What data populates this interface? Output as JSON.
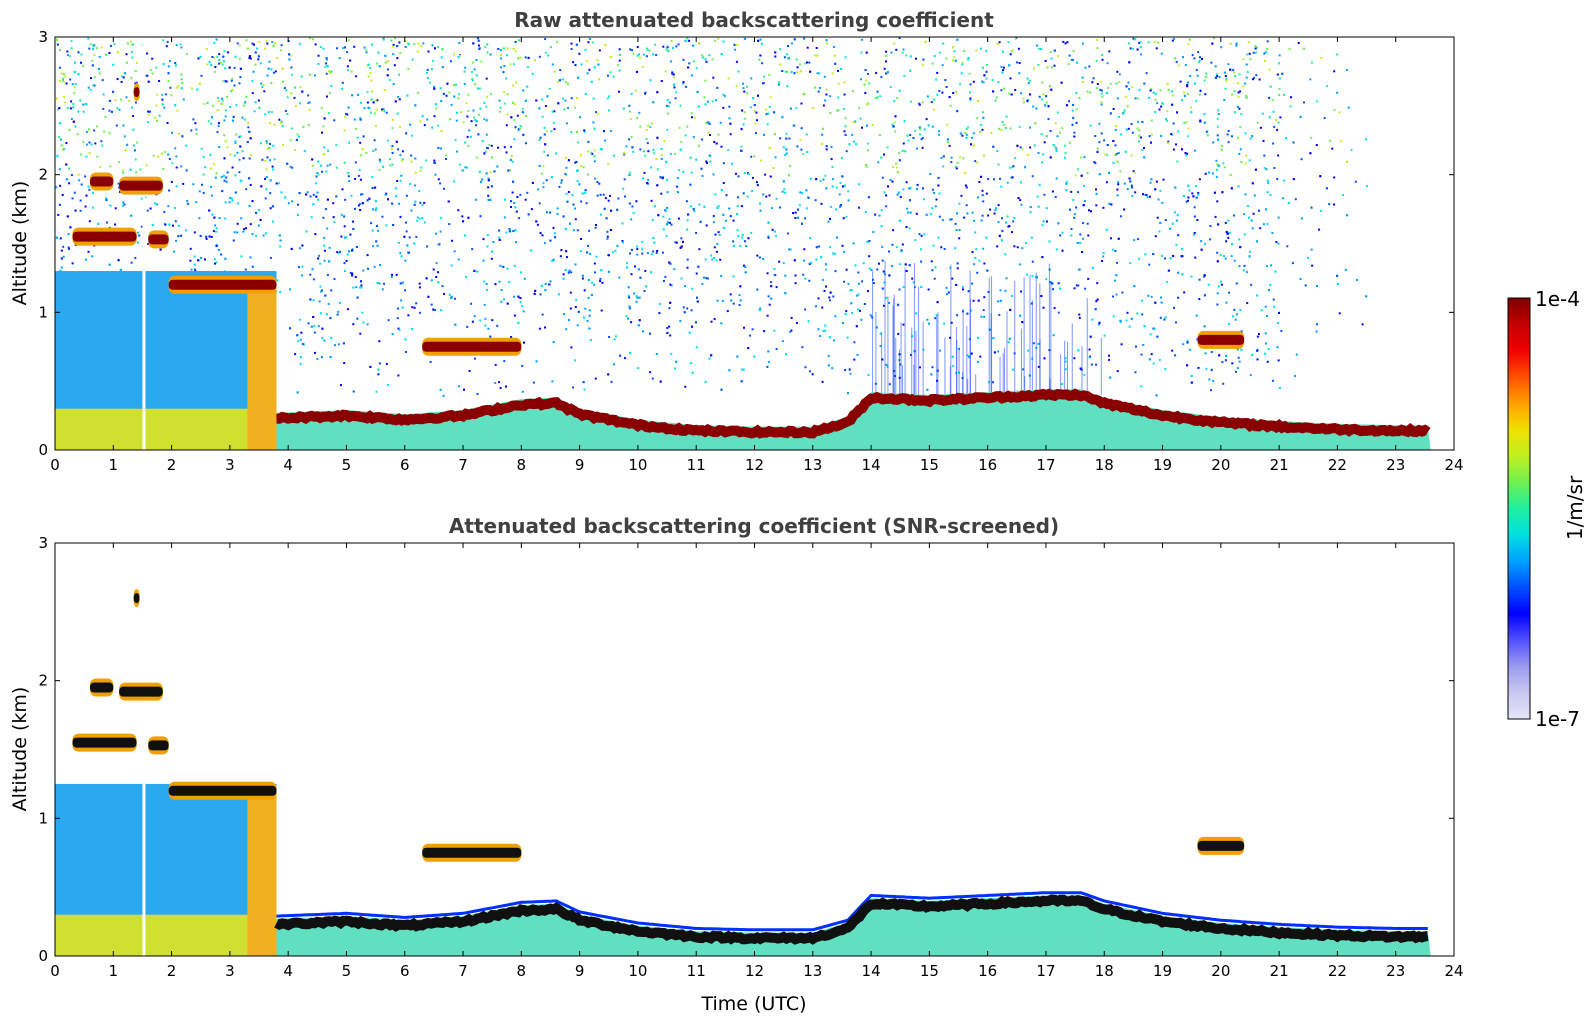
{
  "chart_data": [
    {
      "type": "heatmap",
      "title": "Raw attenuated backscattering coefficient",
      "xlabel": "",
      "ylabel": "Altitude (km)",
      "xlim": [
        0,
        24
      ],
      "ylim": [
        0,
        3
      ],
      "x_ticks": [
        "0",
        "1",
        "2",
        "3",
        "4",
        "5",
        "6",
        "7",
        "8",
        "9",
        "10",
        "11",
        "12",
        "13",
        "14",
        "15",
        "16",
        "17",
        "18",
        "19",
        "20",
        "21",
        "22",
        "23",
        "24"
      ],
      "y_ticks": [
        "0",
        "1",
        "2",
        "3"
      ],
      "boundary_layer_top_km": [
        [
          3.8,
          0.23
        ],
        [
          5,
          0.25
        ],
        [
          6,
          0.22
        ],
        [
          7,
          0.25
        ],
        [
          8,
          0.33
        ],
        [
          8.6,
          0.34
        ],
        [
          9,
          0.26
        ],
        [
          10,
          0.18
        ],
        [
          11,
          0.14
        ],
        [
          12,
          0.13
        ],
        [
          13,
          0.13
        ],
        [
          13.6,
          0.2
        ],
        [
          14,
          0.38
        ],
        [
          15,
          0.36
        ],
        [
          16,
          0.38
        ],
        [
          17,
          0.4
        ],
        [
          17.6,
          0.4
        ],
        [
          18,
          0.34
        ],
        [
          19,
          0.25
        ],
        [
          20,
          0.2
        ],
        [
          21,
          0.17
        ],
        [
          22,
          0.15
        ],
        [
          23,
          0.14
        ],
        [
          23.6,
          0.14
        ]
      ],
      "cloud_layers": [
        {
          "t0": 0.3,
          "t1": 1.4,
          "alt_km": 1.55
        },
        {
          "t0": 1.6,
          "t1": 1.95,
          "alt_km": 1.53
        },
        {
          "t0": 0.6,
          "t1": 1.0,
          "alt_km": 1.95
        },
        {
          "t0": 1.1,
          "t1": 1.85,
          "alt_km": 1.92
        },
        {
          "t0": 1.95,
          "t1": 3.8,
          "alt_km": 1.2
        },
        {
          "t0": 6.3,
          "t1": 8.0,
          "alt_km": 0.75
        },
        {
          "t0": 19.6,
          "t1": 20.4,
          "alt_km": 0.8
        },
        {
          "t0": 1.35,
          "t1": 1.45,
          "alt_km": 2.6
        }
      ]
    },
    {
      "type": "heatmap",
      "title": "Attenuated backscattering coefficient (SNR-screened)",
      "xlabel": "Time (UTC)",
      "ylabel": "Altitude (km)",
      "xlim": [
        0,
        24
      ],
      "ylim": [
        0,
        3
      ],
      "x_ticks": [
        "0",
        "1",
        "2",
        "3",
        "4",
        "5",
        "6",
        "7",
        "8",
        "9",
        "10",
        "11",
        "12",
        "13",
        "14",
        "15",
        "16",
        "17",
        "18",
        "19",
        "20",
        "21",
        "22",
        "23",
        "24"
      ],
      "y_ticks": [
        "0",
        "1",
        "2",
        "3"
      ]
    }
  ],
  "colorbar": {
    "label": "1/m/sr",
    "max_label": "1e-4",
    "min_label": "1e-7",
    "colors": [
      "#e6e6f8",
      "#c8c8f0",
      "#9b9bf0",
      "#5050ff",
      "#0000ff",
      "#0050ff",
      "#00a0ff",
      "#00e0e0",
      "#20f0a0",
      "#70f050",
      "#c0f020",
      "#f0e000",
      "#ffa000",
      "#ff5000",
      "#f00000",
      "#c00000",
      "#800000"
    ]
  }
}
